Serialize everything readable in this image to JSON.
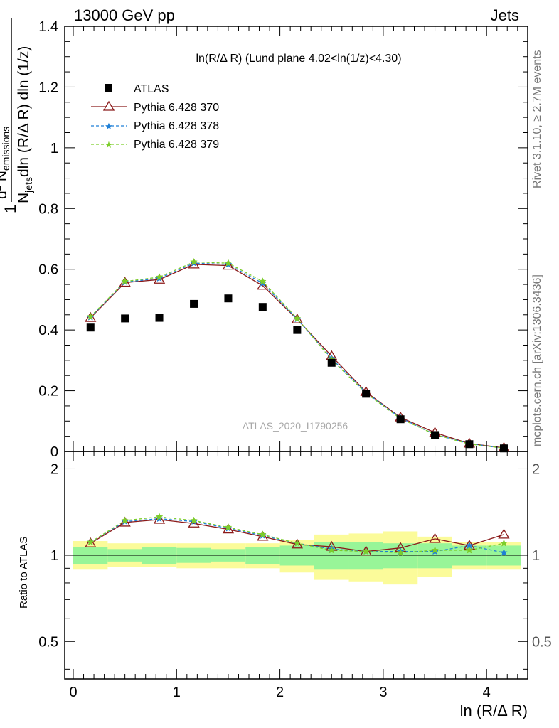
{
  "header": {
    "left": "13000 GeV pp",
    "right": "Jets"
  },
  "plot_title": "ln(R/Δ R) (Lund plane 4.02<ln(1/z)<4.30)",
  "side_labels": {
    "rivet": "Rivet 3.1.10, ≥ 2.7M events",
    "mcplots": "mcplots.cern.ch [arXiv:1306.3436]"
  },
  "watermark": "ATLAS_2020_I1790256",
  "ylabel_main": {
    "numerator": "1",
    "denominator_pre": "N",
    "denominator_sub": "jets",
    "denominator_post": "dln (R/Δ R) dln (1/z)",
    "num2_pre": "d",
    "num2_sup": "2",
    "num2_mid": " N",
    "num2_sub": "emissions"
  },
  "ylabel_ratio": "Ratio to ATLAS",
  "xlabel": "ln (R/Δ R)",
  "colors": {
    "data": "#000000",
    "p370": "#8b1a1a",
    "p378": "#1e7fd6",
    "p379": "#7ccd2a",
    "band_inner": "#98f598",
    "band_outer": "#fbfb9a"
  },
  "chart_data": [
    {
      "type": "scatter",
      "panel": "main",
      "x_bins": [
        0,
        0.333,
        0.667,
        1.0,
        1.333,
        1.667,
        2.0,
        2.333,
        2.667,
        3.0,
        3.333,
        3.667,
        4.0,
        4.333
      ],
      "x": [
        0.167,
        0.5,
        0.833,
        1.167,
        1.5,
        1.833,
        2.167,
        2.5,
        2.833,
        3.167,
        3.5,
        3.833,
        4.167
      ],
      "xlim": [
        -0.1,
        4.42
      ],
      "ylim": [
        0,
        1.4
      ],
      "xticks": [
        "0",
        "1",
        "2",
        "3",
        "4"
      ],
      "yticks": [
        "0",
        "0.2",
        "0.4",
        "0.6",
        "0.8",
        "1",
        "1.2",
        "1.4"
      ],
      "series": [
        {
          "name": "ATLAS",
          "values": [
            0.408,
            0.438,
            0.44,
            0.486,
            0.504,
            0.476,
            0.4,
            0.292,
            0.19,
            0.106,
            0.054,
            0.024,
            0.01
          ]
        },
        {
          "name": "Pythia 6.428 370",
          "values": [
            0.44,
            0.556,
            0.566,
            0.616,
            0.612,
            0.546,
            0.435,
            0.314,
            0.196,
            0.112,
            0.062,
            0.026,
            0.012
          ]
        },
        {
          "name": "Pythia 6.428 378",
          "values": [
            0.442,
            0.558,
            0.57,
            0.62,
            0.616,
            0.554,
            0.436,
            0.306,
            0.194,
            0.11,
            0.056,
            0.026,
            0.01
          ]
        },
        {
          "name": "Pythia 6.428 379",
          "values": [
            0.444,
            0.56,
            0.574,
            0.624,
            0.62,
            0.56,
            0.438,
            0.302,
            0.192,
            0.108,
            0.056,
            0.024,
            0.011
          ]
        }
      ]
    },
    {
      "type": "line",
      "panel": "ratio",
      "x": [
        0.167,
        0.5,
        0.833,
        1.167,
        1.5,
        1.833,
        2.167,
        2.5,
        2.833,
        3.167,
        3.5,
        3.833,
        4.167
      ],
      "ylim": [
        0.37,
        2.3
      ],
      "yticks": [
        "0.5",
        "1",
        "2"
      ],
      "band_inner": [
        [
          0.93,
          1.07
        ],
        [
          0.95,
          1.05
        ],
        [
          0.93,
          1.07
        ],
        [
          0.94,
          1.06
        ],
        [
          0.95,
          1.05
        ],
        [
          0.93,
          1.07
        ],
        [
          0.92,
          1.08
        ],
        [
          0.89,
          1.11
        ],
        [
          0.89,
          1.11
        ],
        [
          0.9,
          1.1
        ],
        [
          0.9,
          1.1
        ],
        [
          0.92,
          1.08
        ],
        [
          0.92,
          1.08
        ]
      ],
      "band_outer": [
        [
          0.89,
          1.12
        ],
        [
          0.91,
          1.1
        ],
        [
          0.91,
          1.1
        ],
        [
          0.9,
          1.1
        ],
        [
          0.9,
          1.1
        ],
        [
          0.9,
          1.1
        ],
        [
          0.87,
          1.13
        ],
        [
          0.82,
          1.18
        ],
        [
          0.81,
          1.19
        ],
        [
          0.79,
          1.21
        ],
        [
          0.84,
          1.16
        ],
        [
          0.89,
          1.11
        ],
        [
          0.89,
          1.11
        ]
      ],
      "series": [
        {
          "name": "Pythia 6.428 370",
          "values": [
            1.1,
            1.3,
            1.33,
            1.29,
            1.23,
            1.16,
            1.09,
            1.07,
            1.03,
            1.06,
            1.14,
            1.08,
            1.18
          ]
        },
        {
          "name": "Pythia 6.428 378",
          "values": [
            1.11,
            1.31,
            1.34,
            1.31,
            1.24,
            1.17,
            1.1,
            1.05,
            1.03,
            1.03,
            1.03,
            1.08,
            1.02
          ]
        },
        {
          "name": "Pythia 6.428 379",
          "values": [
            1.11,
            1.32,
            1.36,
            1.32,
            1.25,
            1.18,
            1.1,
            1.04,
            1.03,
            1.02,
            1.04,
            1.04,
            1.1
          ]
        }
      ]
    }
  ]
}
